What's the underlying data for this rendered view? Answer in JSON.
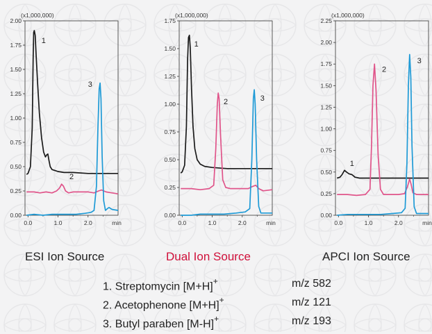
{
  "colors": {
    "compound_1": "#1a1a1a",
    "compound_2": "#e0548a",
    "compound_3": "#1e9ad6",
    "dual_label": "#d0103a",
    "text": "#222222",
    "background": "#f3f3f4"
  },
  "chart_data": [
    {
      "type": "line",
      "scale_label": "(x1,000,000)",
      "x_unit": "min",
      "x_ticks": [
        0.0,
        1.0,
        2.0
      ],
      "xlim": [
        -0.1,
        3.0
      ],
      "y_ticks": [
        "0.00",
        "0.25",
        "0.50",
        "0.75",
        "1.00",
        "1.25",
        "1.50",
        "1.75",
        "2.00"
      ],
      "ylim": [
        0,
        2.0
      ],
      "caption": "ESI Ion Source",
      "series": [
        {
          "id": "1",
          "x": [
            -0.05,
            0.0,
            0.08,
            0.14,
            0.17,
            0.19,
            0.21,
            0.24,
            0.27,
            0.32,
            0.38,
            0.45,
            0.52,
            0.58,
            0.62,
            0.66,
            0.7,
            0.74,
            0.8,
            0.9,
            1.0,
            1.2,
            1.5,
            2.0,
            2.5,
            2.8,
            3.0
          ],
          "y": [
            0.42,
            0.43,
            0.5,
            0.9,
            1.6,
            1.88,
            1.9,
            1.85,
            1.65,
            1.35,
            1.05,
            0.8,
            0.65,
            0.6,
            0.62,
            0.63,
            0.56,
            0.5,
            0.47,
            0.46,
            0.45,
            0.44,
            0.44,
            0.43,
            0.43,
            0.43,
            0.43
          ]
        },
        {
          "id": "2",
          "x": [
            -0.05,
            0.2,
            0.4,
            0.6,
            0.8,
            0.95,
            1.05,
            1.12,
            1.18,
            1.25,
            1.35,
            1.5,
            1.7,
            2.0,
            2.2,
            2.35,
            2.45,
            2.6,
            2.8,
            3.0
          ],
          "y": [
            0.24,
            0.24,
            0.23,
            0.24,
            0.23,
            0.25,
            0.28,
            0.32,
            0.3,
            0.25,
            0.23,
            0.24,
            0.24,
            0.24,
            0.23,
            0.25,
            0.26,
            0.24,
            0.23,
            0.22
          ]
        },
        {
          "id": "3",
          "x": [
            -0.05,
            0.2,
            0.5,
            0.8,
            1.0,
            1.3,
            1.6,
            1.9,
            2.1,
            2.2,
            2.28,
            2.33,
            2.37,
            2.4,
            2.43,
            2.47,
            2.52,
            2.58,
            2.65,
            2.7,
            2.8,
            3.0
          ],
          "y": [
            0.0,
            0.01,
            0.0,
            0.01,
            0.01,
            0.01,
            0.01,
            0.02,
            0.03,
            0.05,
            0.3,
            0.9,
            1.3,
            1.36,
            1.2,
            0.6,
            0.15,
            0.05,
            0.07,
            0.08,
            0.06,
            0.05
          ]
        }
      ],
      "peak_labels": [
        {
          "text": "1",
          "x": 0.45,
          "y": 1.77
        },
        {
          "text": "2",
          "x": 1.38,
          "y": 0.37
        },
        {
          "text": "3",
          "x": 2.0,
          "y": 1.32
        }
      ]
    },
    {
      "type": "line",
      "scale_label": "(x1,000,000)",
      "x_unit": "min",
      "x_ticks": [
        0.0,
        1.0,
        2.0
      ],
      "xlim": [
        -0.1,
        3.0
      ],
      "y_ticks": [
        "0.00",
        "0.25",
        "0.50",
        "0.75",
        "1.00",
        "1.25",
        "1.50",
        "1.75"
      ],
      "ylim": [
        0,
        1.75
      ],
      "caption": "Dual Ion Source",
      "series": [
        {
          "id": "1",
          "x": [
            -0.05,
            0.0,
            0.08,
            0.14,
            0.18,
            0.21,
            0.24,
            0.27,
            0.31,
            0.36,
            0.42,
            0.5,
            0.6,
            0.75,
            1.0,
            1.5,
            2.0,
            2.5,
            3.0
          ],
          "y": [
            0.38,
            0.39,
            0.45,
            0.8,
            1.4,
            1.6,
            1.62,
            1.5,
            1.15,
            0.8,
            0.6,
            0.5,
            0.46,
            0.44,
            0.43,
            0.42,
            0.42,
            0.42,
            0.42
          ]
        },
        {
          "id": "2",
          "x": [
            -0.05,
            0.3,
            0.6,
            0.9,
            1.05,
            1.12,
            1.17,
            1.2,
            1.23,
            1.28,
            1.35,
            1.45,
            1.6,
            1.9,
            2.2,
            2.35,
            2.45,
            2.55,
            2.7,
            3.0
          ],
          "y": [
            0.24,
            0.24,
            0.23,
            0.24,
            0.27,
            0.6,
            1.0,
            1.1,
            1.05,
            0.7,
            0.32,
            0.25,
            0.24,
            0.24,
            0.24,
            0.26,
            0.27,
            0.24,
            0.22,
            0.23
          ]
        },
        {
          "id": "3",
          "x": [
            -0.05,
            0.3,
            0.6,
            1.0,
            1.4,
            1.8,
            2.1,
            2.25,
            2.32,
            2.37,
            2.4,
            2.43,
            2.48,
            2.55,
            2.62,
            2.7,
            3.0
          ],
          "y": [
            0.0,
            0.0,
            0.01,
            0.01,
            0.01,
            0.02,
            0.03,
            0.06,
            0.5,
            1.05,
            1.13,
            1.0,
            0.5,
            0.08,
            0.02,
            0.02,
            0.02
          ]
        }
      ],
      "peak_labels": [
        {
          "text": "1",
          "x": 0.4,
          "y": 1.52
        },
        {
          "text": "2",
          "x": 1.38,
          "y": 1.0
        },
        {
          "text": "3",
          "x": 2.6,
          "y": 1.03
        }
      ]
    },
    {
      "type": "line",
      "scale_label": "(x1,000,000)",
      "x_unit": "min",
      "x_ticks": [
        0.0,
        1.0,
        2.0
      ],
      "xlim": [
        -0.1,
        3.0
      ],
      "y_ticks": [
        "0.00",
        "0.25",
        "0.50",
        "0.75",
        "1.00",
        "1.25",
        "1.50",
        "1.75",
        "2.00",
        "2.25"
      ],
      "ylim": [
        0,
        2.25
      ],
      "caption": "APCI Ion Source",
      "series": [
        {
          "id": "1",
          "x": [
            -0.05,
            0.05,
            0.12,
            0.2,
            0.27,
            0.35,
            0.45,
            0.55,
            0.7,
            1.0,
            1.5,
            2.0,
            2.5,
            3.0
          ],
          "y": [
            0.43,
            0.44,
            0.47,
            0.52,
            0.5,
            0.48,
            0.47,
            0.44,
            0.43,
            0.43,
            0.43,
            0.43,
            0.43,
            0.43
          ]
        },
        {
          "id": "2",
          "x": [
            -0.05,
            0.3,
            0.6,
            0.9,
            1.05,
            1.1,
            1.15,
            1.2,
            1.25,
            1.32,
            1.4,
            1.5,
            1.7,
            2.0,
            2.2,
            2.3,
            2.37,
            2.42,
            2.48,
            2.6,
            3.0
          ],
          "y": [
            0.24,
            0.24,
            0.23,
            0.24,
            0.3,
            0.8,
            1.5,
            1.75,
            1.45,
            0.7,
            0.3,
            0.24,
            0.24,
            0.24,
            0.25,
            0.33,
            0.42,
            0.36,
            0.26,
            0.24,
            0.24
          ]
        },
        {
          "id": "3",
          "x": [
            -0.05,
            0.3,
            0.6,
            1.0,
            1.4,
            1.8,
            2.1,
            2.22,
            2.28,
            2.33,
            2.37,
            2.41,
            2.45,
            2.52,
            2.6,
            2.7,
            3.0
          ],
          "y": [
            0.0,
            0.01,
            0.01,
            0.01,
            0.01,
            0.02,
            0.03,
            0.08,
            0.6,
            1.5,
            1.86,
            1.6,
            0.8,
            0.1,
            0.02,
            0.02,
            0.02
          ]
        }
      ],
      "peak_labels": [
        {
          "text": "1",
          "x": 0.38,
          "y": 0.57
        },
        {
          "text": "2",
          "x": 1.45,
          "y": 1.66
        },
        {
          "text": "3",
          "x": 2.62,
          "y": 1.76
        }
      ]
    }
  ],
  "legend": [
    {
      "compound": "1. Streptomycin [M+H]",
      "charge": "+",
      "mz": "m/z 582"
    },
    {
      "compound": "2. Acetophenone [M+H]",
      "charge": "+",
      "mz": "m/z 121"
    },
    {
      "compound": "3. Butyl paraben [M-H]",
      "charge": "+",
      "mz": "m/z 193"
    }
  ]
}
